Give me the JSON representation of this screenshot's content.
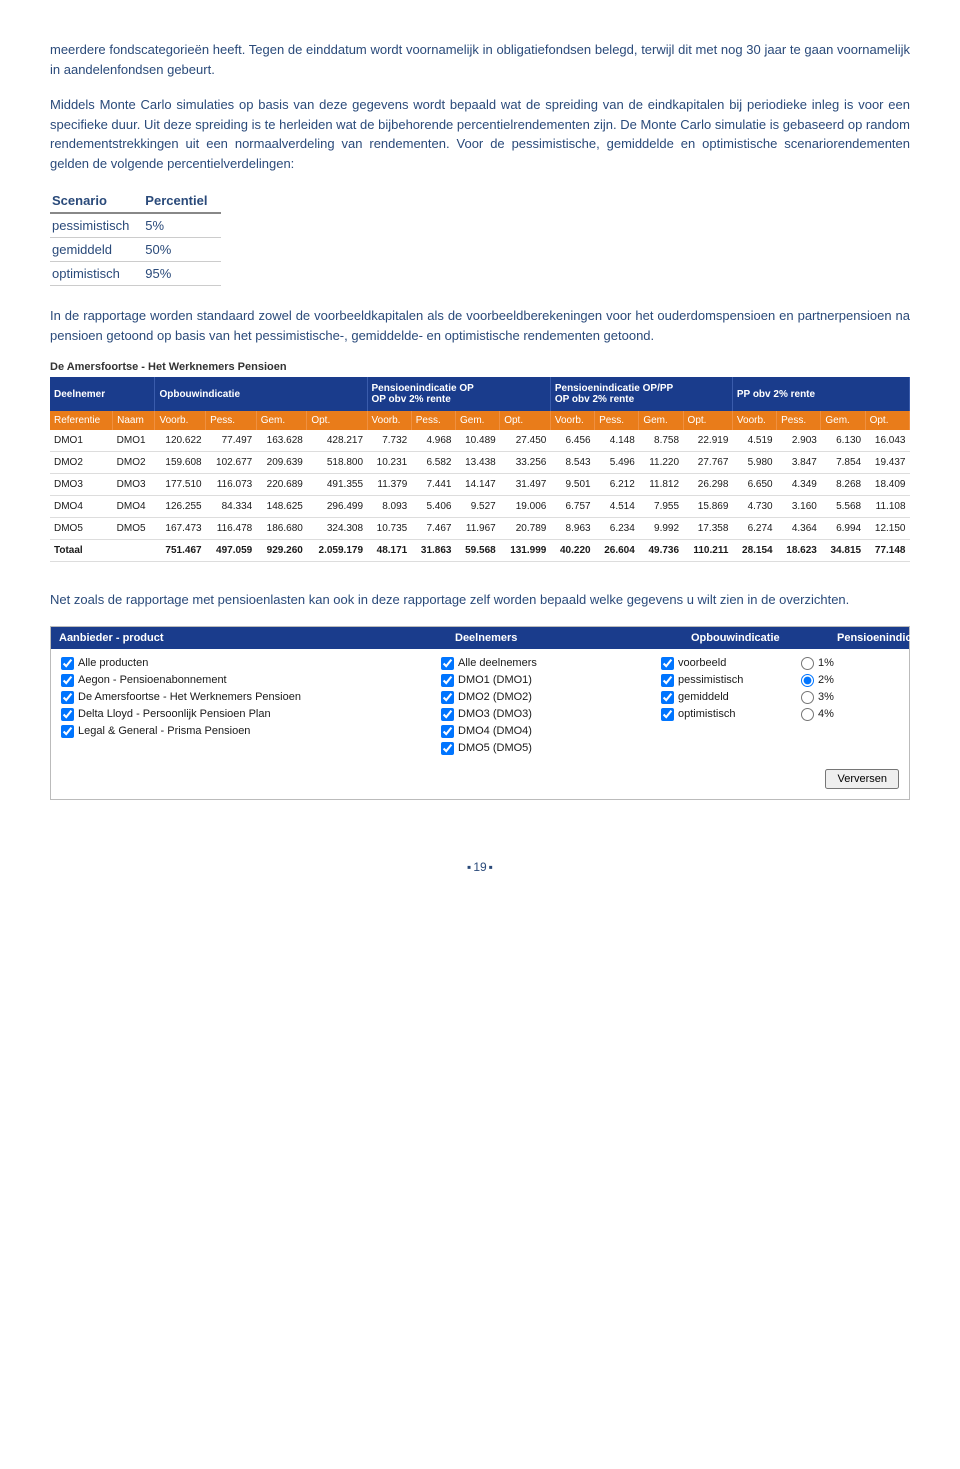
{
  "para1": "meerdere fondscategorieën heeft. Tegen de einddatum wordt voornamelijk in obligatiefondsen belegd, terwijl dit met nog 30 jaar te gaan voornamelijk in aandelenfondsen gebeurt.",
  "para2": "Middels Monte Carlo simulaties op basis van deze gegevens wordt bepaald wat de spreiding van de eindkapitalen bij periodieke inleg is voor een specifieke duur. Uit deze spreiding is te herleiden wat de bijbehorende percentielrendementen zijn. De Monte Carlo simulatie is gebaseerd op random rendementstrekkingen uit een normaalverdeling van rendementen. Voor de pessimistische, gemiddelde en optimistische scenariorendementen gelden de volgende percentielverdelingen:",
  "para3": "In de rapportage worden standaard zowel de voorbeeldkapitalen als de voorbeeldberekeningen voor het ouderdomspensioen en partnerpensioen na pensioen getoond op basis van het pessimistische-, gemiddelde- en optimistische rendementen getoond.",
  "para4": "Net zoals de rapportage met pensioenlasten kan ook in deze rapportage zelf worden bepaald welke gegevens u wilt zien in de overzichten.",
  "scenario": {
    "head": [
      "Scenario",
      "Percentiel"
    ],
    "rows": [
      [
        "pessimistisch",
        "5%"
      ],
      [
        "gemiddeld",
        "50%"
      ],
      [
        "optimistisch",
        "95%"
      ]
    ]
  },
  "dataTable": {
    "title": "De Amersfoortse - Het Werknemers Pensioen",
    "header1": [
      "Deelnemer",
      "Opbouwindicatie",
      "Pensioenindicatie OP\nOP obv 2% rente",
      "Pensioenindicatie OP/PP\nOP obv 2% rente",
      "PP obv 2% rente"
    ],
    "header2": [
      "Referentie",
      "Naam",
      "Voorb.",
      "Pess.",
      "Gem.",
      "Opt.",
      "Voorb.",
      "Pess.",
      "Gem.",
      "Opt.",
      "Voorb.",
      "Pess.",
      "Gem.",
      "Opt.",
      "Voorb.",
      "Pess.",
      "Gem.",
      "Opt."
    ],
    "rows": [
      [
        "DMO1",
        "DMO1",
        "120.622",
        "77.497",
        "163.628",
        "428.217",
        "7.732",
        "4.968",
        "10.489",
        "27.450",
        "6.456",
        "4.148",
        "8.758",
        "22.919",
        "4.519",
        "2.903",
        "6.130",
        "16.043"
      ],
      [
        "DMO2",
        "DMO2",
        "159.608",
        "102.677",
        "209.639",
        "518.800",
        "10.231",
        "6.582",
        "13.438",
        "33.256",
        "8.543",
        "5.496",
        "11.220",
        "27.767",
        "5.980",
        "3.847",
        "7.854",
        "19.437"
      ],
      [
        "DMO3",
        "DMO3",
        "177.510",
        "116.073",
        "220.689",
        "491.355",
        "11.379",
        "7.441",
        "14.147",
        "31.497",
        "9.501",
        "6.212",
        "11.812",
        "26.298",
        "6.650",
        "4.349",
        "8.268",
        "18.409"
      ],
      [
        "DMO4",
        "DMO4",
        "126.255",
        "84.334",
        "148.625",
        "296.499",
        "8.093",
        "5.406",
        "9.527",
        "19.006",
        "6.757",
        "4.514",
        "7.955",
        "15.869",
        "4.730",
        "3.160",
        "5.568",
        "11.108"
      ],
      [
        "DMO5",
        "DMO5",
        "167.473",
        "116.478",
        "186.680",
        "324.308",
        "10.735",
        "7.467",
        "11.967",
        "20.789",
        "8.963",
        "6.234",
        "9.992",
        "17.358",
        "6.274",
        "4.364",
        "6.994",
        "12.150"
      ]
    ],
    "total": [
      "Totaal",
      "",
      "751.467",
      "497.059",
      "929.260",
      "2.059.179",
      "48.171",
      "31.863",
      "59.568",
      "131.999",
      "40.220",
      "26.604",
      "49.736",
      "110.211",
      "28.154",
      "18.623",
      "34.815",
      "77.148"
    ]
  },
  "filter": {
    "headers": [
      "Aanbieder - product",
      "Deelnemers",
      "Opbouwindicatie",
      "Pensioenindicatie"
    ],
    "col1": [
      "Alle producten",
      "Aegon - Pensioenabonnement",
      "De Amersfoortse - Het Werknemers Pensioen",
      "Delta Lloyd - Persoonlijk Pensioen Plan",
      "Legal & General - Prisma Pensioen"
    ],
    "col2": [
      "Alle deelnemers",
      "DMO1 (DMO1)",
      "DMO2 (DMO2)",
      "DMO3 (DMO3)",
      "DMO4 (DMO4)",
      "DMO5 (DMO5)"
    ],
    "col3": [
      "voorbeeld",
      "pessimistisch",
      "gemiddeld",
      "optimistisch"
    ],
    "col4": [
      "1%",
      "2%",
      "3%",
      "4%"
    ],
    "col4selected": 1,
    "button": "Verversen"
  },
  "pageNumber": "19"
}
